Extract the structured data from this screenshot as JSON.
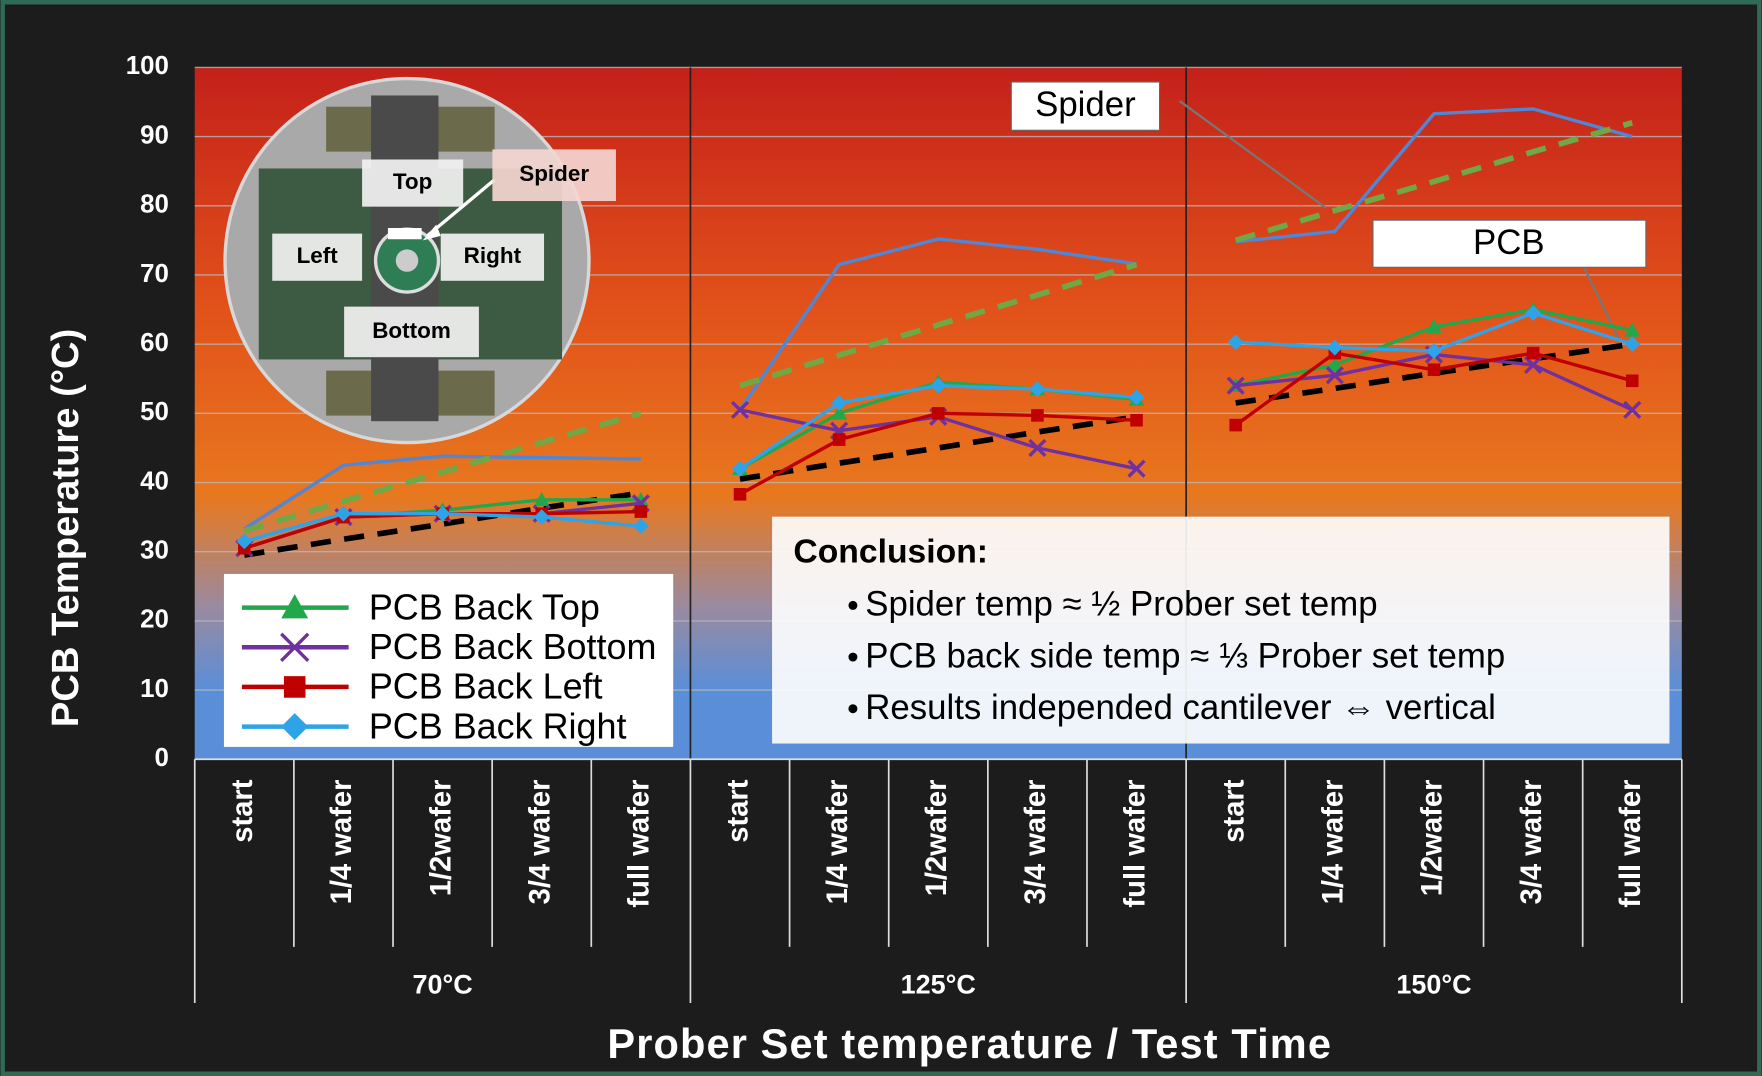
{
  "chart_data": {
    "type": "line",
    "y_label": "PCB Temperature (°C)",
    "x_label": "Prober Set temperature / Test Time",
    "categories": [
      "start",
      "1/4 wafer",
      "1/2wafer",
      "3/4 wafer",
      "full wafer",
      "start",
      "1/4 wafer",
      "1/2wafer",
      "3/4 wafer",
      "full wafer",
      "start",
      "1/4 wafer",
      "1/2wafer",
      "3/4 wafer",
      "full wafer"
    ],
    "groups": [
      "70°C",
      "125°C",
      "150°C"
    ],
    "ylim": [
      0,
      100
    ],
    "yticks": [
      0,
      10,
      20,
      30,
      40,
      50,
      60,
      70,
      80,
      90,
      100
    ],
    "grid": true,
    "series": [
      {
        "color": "#4f86d6",
        "marker": "none",
        "values": [
          33.3,
          42.5,
          43.8,
          43.6,
          43.4,
          50.5,
          71.5,
          75.2,
          73.7,
          71.6,
          74.8,
          76.3,
          93.3,
          94,
          90
        ]
      },
      {
        "color": "#6fa845",
        "style": "dashed",
        "values": [
          33,
          37.3,
          41.5,
          45.8,
          50,
          54,
          58.4,
          62.8,
          67.1,
          71.5,
          75,
          79.3,
          83.5,
          87.8,
          92
        ]
      },
      {
        "color": "#000000",
        "style": "dashed",
        "values": [
          29.5,
          31.8,
          34,
          36.3,
          38.5,
          40.5,
          42.8,
          45,
          47.3,
          49.5,
          51.5,
          53.6,
          55.8,
          57.9,
          60
        ]
      },
      {
        "name": "PCB Back Top",
        "color": "#22a84a",
        "marker": "triangle",
        "values": [
          30.5,
          35,
          36,
          37.5,
          37.5,
          42,
          50,
          54.5,
          53.5,
          52,
          54,
          57,
          62.5,
          65,
          62
        ]
      },
      {
        "name": "PCB Back Bottom",
        "color": "#7030a0",
        "marker": "x",
        "values": [
          30.5,
          35,
          35.5,
          35.5,
          37,
          50.5,
          47.5,
          49.5,
          45,
          42,
          54,
          55.5,
          58.5,
          57,
          50.5
        ]
      },
      {
        "name": "PCB Back Left",
        "color": "#c00000",
        "marker": "square",
        "values": [
          30.5,
          35,
          35.5,
          35.5,
          35.8,
          38.3,
          46.2,
          50,
          49.7,
          49,
          48.3,
          58.7,
          56.3,
          58.7,
          54.7
        ]
      },
      {
        "name": "PCB Back Right",
        "color": "#2ea3e8",
        "marker": "diamond",
        "values": [
          31.5,
          35.5,
          35.5,
          35,
          33.7,
          42,
          51.5,
          54,
          53.5,
          52.3,
          60.3,
          59.5,
          59,
          64.5,
          60
        ]
      }
    ],
    "annotations": [
      "Spider",
      "PCB"
    ],
    "conclusion": {
      "title": "Conclusion:",
      "items": [
        "Spider temp ≈ ½ Prober set temp",
        "PCB back side temp ≈ ⅓ Prober set temp",
        "Results independed cantilever ⇔ vertical"
      ]
    },
    "inset_labels": [
      "Top",
      "Spider",
      "Left",
      "Right",
      "Bottom"
    ]
  }
}
